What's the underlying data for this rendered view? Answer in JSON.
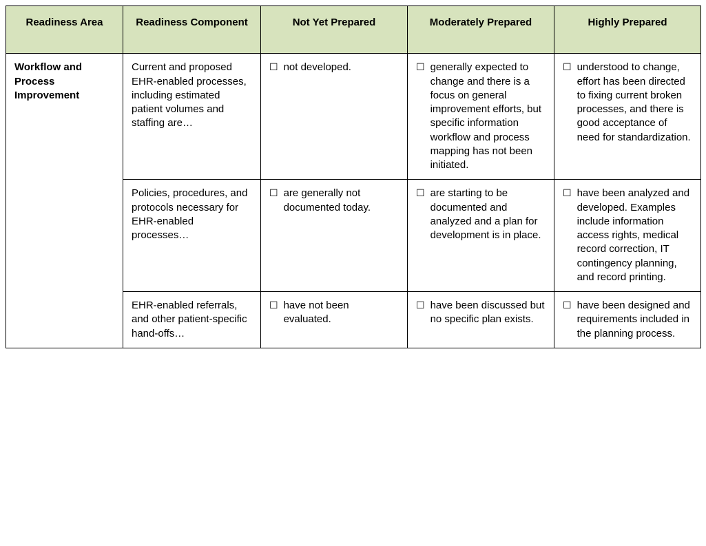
{
  "table": {
    "header_bg": "#d7e3bd",
    "border_color": "#000000",
    "columns": [
      "Readiness Area",
      "Readiness Component",
      "Not Yet Prepared",
      "Moderately Prepared",
      "Highly Prepared"
    ],
    "area": "Workflow and Process Improvement",
    "rows": [
      {
        "component": "Current and proposed EHR-enabled processes, including estimated patient volumes and staffing are…",
        "not_yet": "not developed.",
        "moderate": "generally expected to change and there is a focus on general improvement efforts, but specific information workflow and process mapping has not been initiated.",
        "high": "understood to change, effort has been directed to fixing current broken processes, and there is good acceptance of need for standardization."
      },
      {
        "component": "Policies, procedures, and protocols necessary for EHR-enabled processes…",
        "not_yet": "are generally not documented today.",
        "moderate": "are starting to be documented and analyzed and a plan for development is in place.",
        "high": "have been analyzed and developed. Examples include information access rights, medical record correction, IT contingency planning, and record printing."
      },
      {
        "component": "EHR-enabled referrals, and other patient-specific hand-offs…",
        "not_yet": "have not been evaluated.",
        "moderate": "have been discussed but no specific plan exists.",
        "high": "have been designed and requirements included in the planning process."
      }
    ]
  },
  "checkbox_glyph": "☐"
}
